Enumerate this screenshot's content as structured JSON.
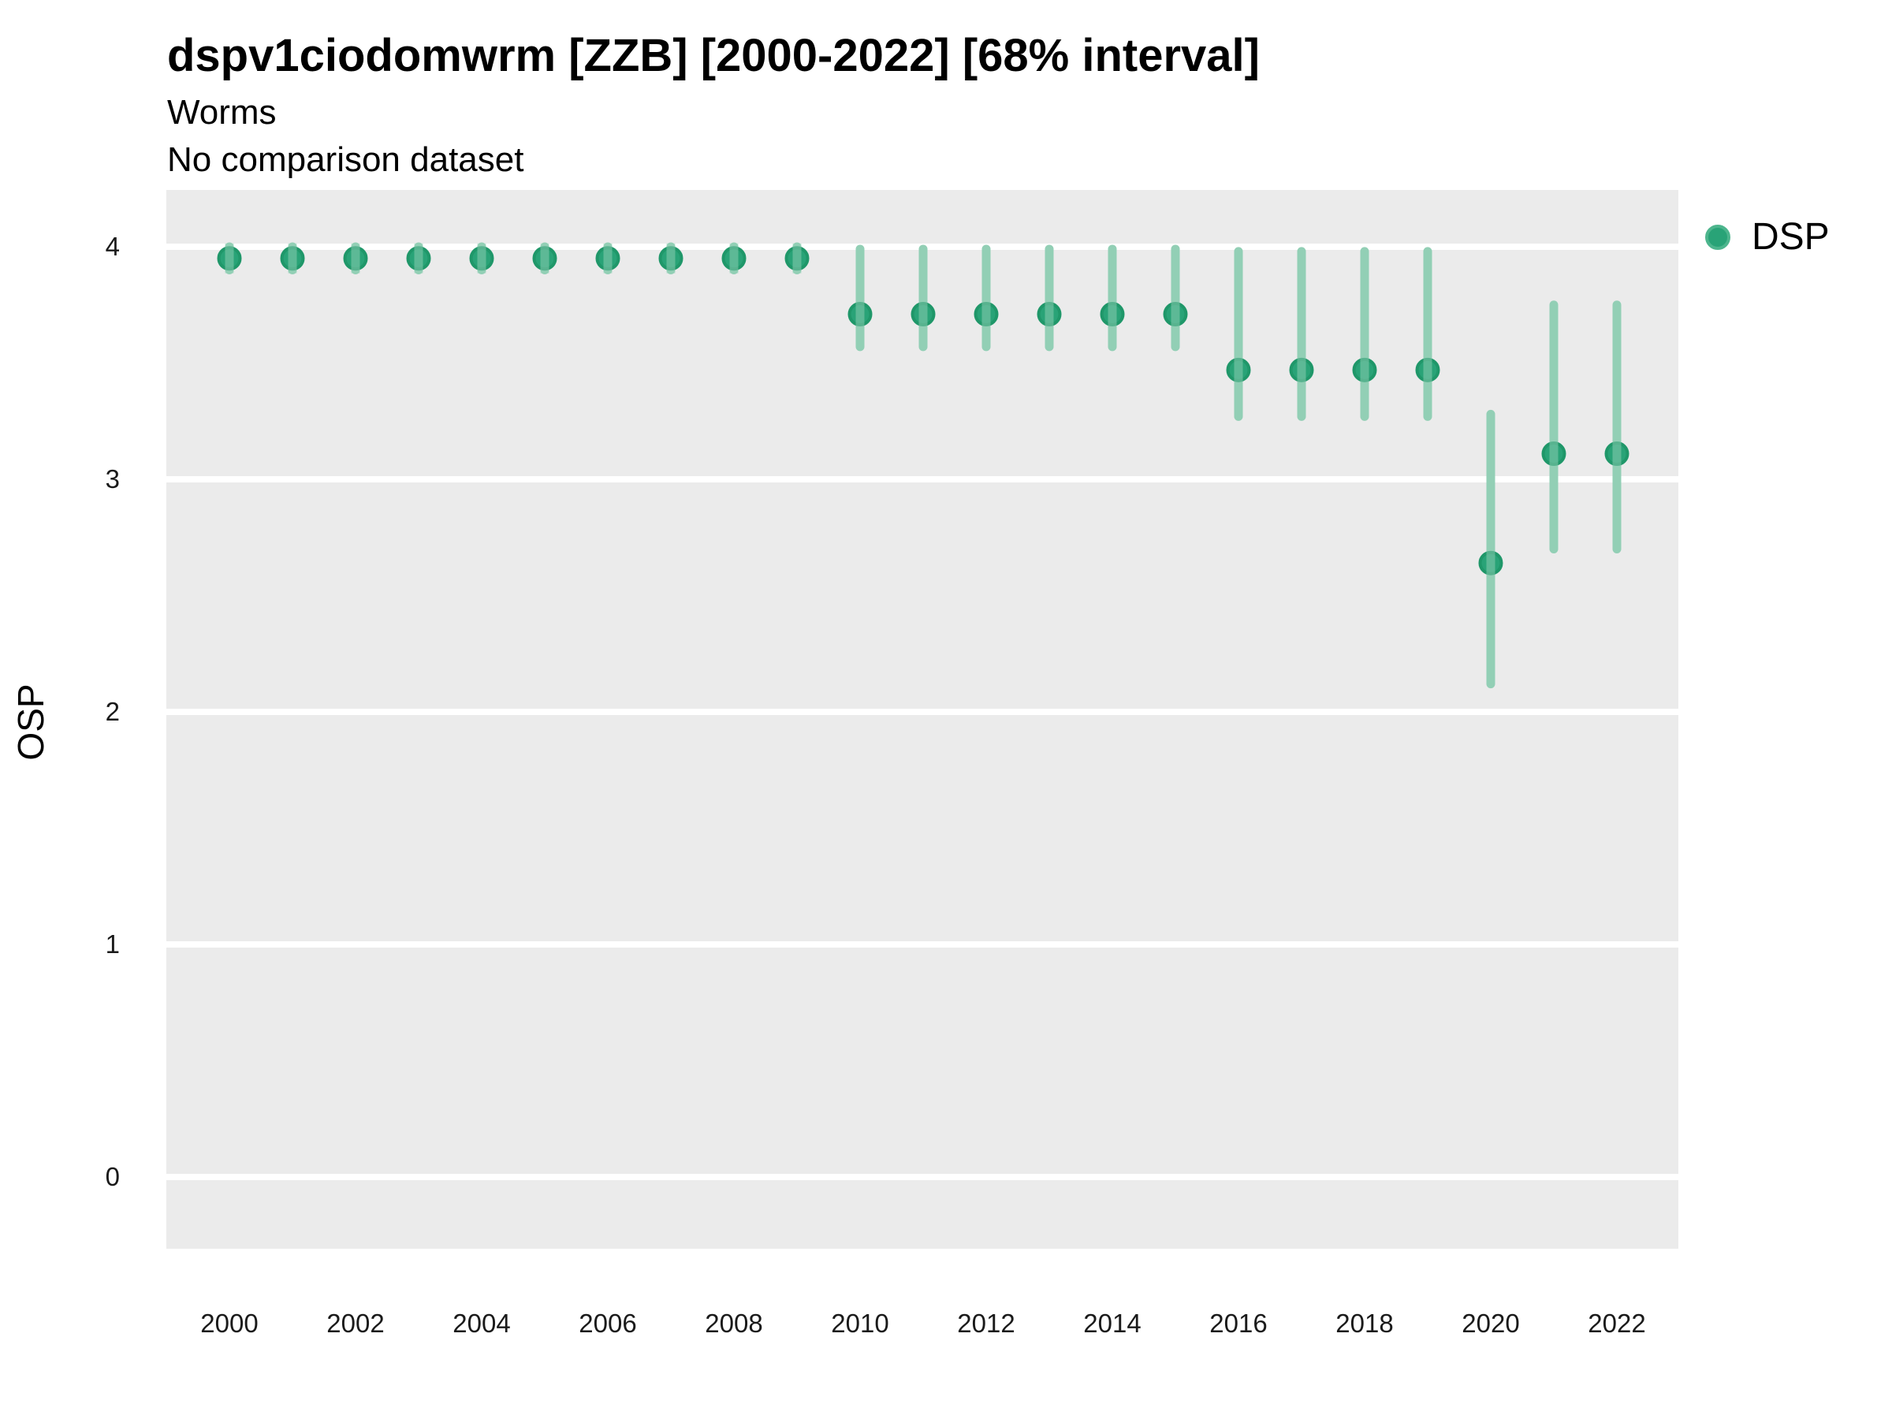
{
  "chart_data": {
    "type": "pointrange",
    "title": "dspv1ciodomwrm [ZZB] [2000-2022] [68% interval]",
    "subtitle": "Worms",
    "note": "No comparison dataset",
    "ylabel": "OSP",
    "xlabel": "",
    "interval": "68%",
    "grid": "major-horizontal-white-on-gray",
    "legend": {
      "position": "right-top",
      "items": [
        {
          "label": "DSP",
          "color": "#29a377"
        }
      ]
    },
    "ylim": [
      -0.31,
      4.24
    ],
    "yticks": [
      0,
      1,
      2,
      3,
      4
    ],
    "xticks": [
      2000,
      2002,
      2004,
      2006,
      2008,
      2010,
      2012,
      2014,
      2016,
      2018,
      2020,
      2022
    ],
    "years": [
      2000,
      2001,
      2002,
      2003,
      2004,
      2005,
      2006,
      2007,
      2008,
      2009,
      2010,
      2011,
      2012,
      2013,
      2014,
      2015,
      2016,
      2017,
      2018,
      2019,
      2020,
      2021,
      2022
    ],
    "series": [
      {
        "name": "DSP",
        "mean": [
          3.95,
          3.95,
          3.95,
          3.95,
          3.95,
          3.95,
          3.95,
          3.95,
          3.95,
          3.95,
          3.71,
          3.71,
          3.71,
          3.71,
          3.71,
          3.71,
          3.47,
          3.47,
          3.47,
          3.47,
          2.64,
          3.11,
          3.11
        ],
        "lower": [
          3.9,
          3.9,
          3.9,
          3.9,
          3.9,
          3.9,
          3.9,
          3.9,
          3.9,
          3.9,
          3.57,
          3.57,
          3.57,
          3.57,
          3.57,
          3.57,
          3.27,
          3.27,
          3.27,
          3.27,
          2.12,
          2.7,
          2.7
        ],
        "upper": [
          4.0,
          4.0,
          4.0,
          4.0,
          4.0,
          4.0,
          4.0,
          4.0,
          4.0,
          4.0,
          3.99,
          3.99,
          3.99,
          3.99,
          3.99,
          3.99,
          3.98,
          3.98,
          3.98,
          3.98,
          3.28,
          3.75,
          3.75
        ]
      }
    ],
    "colors": {
      "panel": "#ebebeb",
      "grid": "#ffffff",
      "point": "#29a377",
      "point_stroke": "#1f9769",
      "bar": "#92cfb5",
      "tick_text": "#1a1a1a"
    }
  }
}
